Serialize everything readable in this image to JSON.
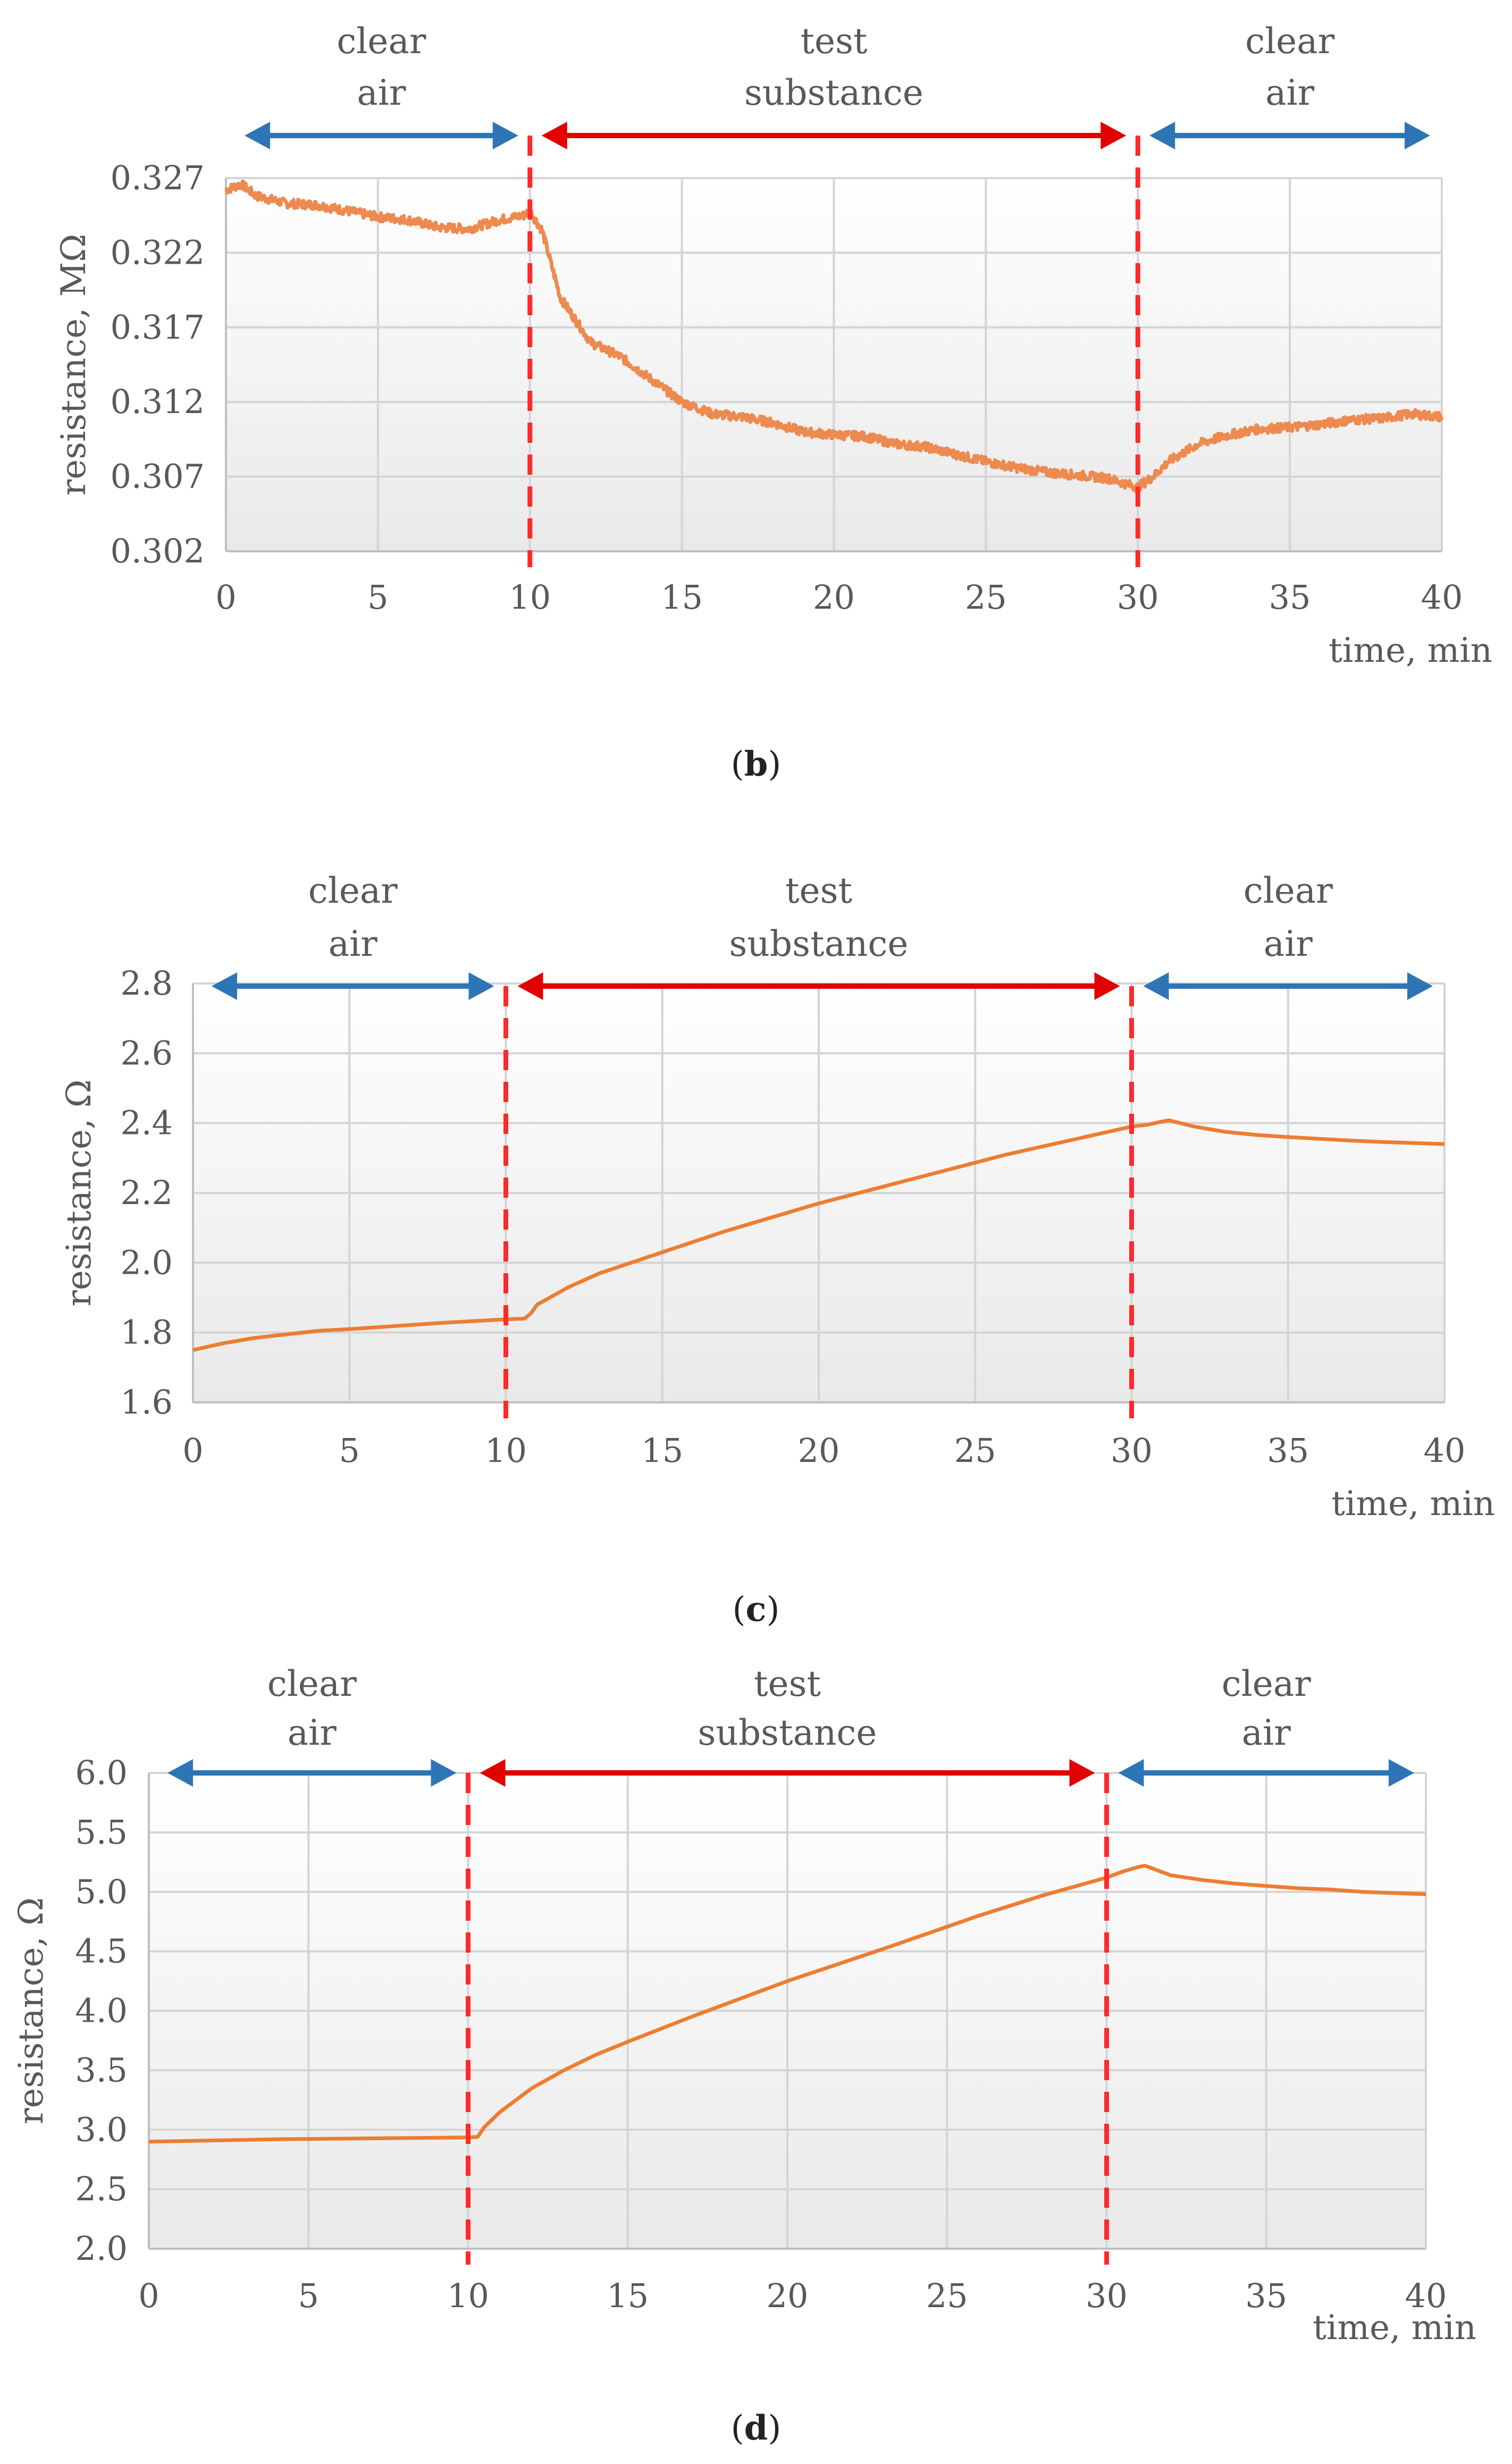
{
  "chart_data": [
    {
      "id": "b",
      "type": "line",
      "caption": "b",
      "ylabel": "resistance, MΩ",
      "xlabel": "time, min",
      "xlim": [
        0,
        40
      ],
      "ylim": [
        0.302,
        0.327
      ],
      "xticks": [
        0,
        5,
        10,
        15,
        20,
        25,
        30,
        35,
        40
      ],
      "x_tick_labels": [
        "0",
        "5",
        "10",
        "15",
        "20",
        "25",
        "30",
        "35",
        "40"
      ],
      "yticks": [
        0.302,
        0.307,
        0.312,
        0.317,
        0.322,
        0.327
      ],
      "y_tick_labels": [
        "0.302",
        "0.307",
        "0.312",
        "0.317",
        "0.322",
        "0.327"
      ],
      "grid": true,
      "noisy": true,
      "x": [
        0,
        0.5,
        1,
        2,
        3,
        4,
        5,
        6,
        7,
        8,
        9,
        9.8,
        10,
        10.4,
        11,
        12,
        13,
        14,
        15,
        16,
        17,
        18,
        19,
        20,
        21,
        22,
        23,
        24,
        25,
        26,
        27,
        28,
        29,
        29.8,
        30,
        30.5,
        31,
        32,
        33,
        34,
        35,
        36,
        37,
        38,
        39,
        40
      ],
      "values": [
        0.3262,
        0.3266,
        0.3258,
        0.3253,
        0.3252,
        0.3248,
        0.3244,
        0.3242,
        0.3237,
        0.3236,
        0.3242,
        0.3245,
        0.3248,
        0.3235,
        0.319,
        0.316,
        0.315,
        0.3135,
        0.312,
        0.3112,
        0.311,
        0.3106,
        0.31,
        0.3098,
        0.3097,
        0.3092,
        0.309,
        0.3085,
        0.308,
        0.3076,
        0.3073,
        0.3071,
        0.3069,
        0.3064,
        0.3063,
        0.307,
        0.308,
        0.3092,
        0.3098,
        0.3102,
        0.3103,
        0.3105,
        0.3108,
        0.3109,
        0.3112,
        0.311
      ],
      "phases": [
        {
          "label_line1": "clear",
          "label_line2": "air",
          "color": "#2E75B6",
          "from": 0,
          "to": 10
        },
        {
          "label_line1": "test",
          "label_line2": "substance",
          "color": "#E00000",
          "from": 10,
          "to": 30
        },
        {
          "label_line1": "clear",
          "label_line2": "air",
          "color": "#2E75B6",
          "from": 30,
          "to": 40
        }
      ],
      "switch_lines": [
        10,
        30
      ],
      "line_color": "#ED8A4F"
    },
    {
      "id": "c",
      "type": "line",
      "caption": "c",
      "ylabel": "resistance, Ω",
      "xlabel": "time, min",
      "xlim": [
        0,
        40
      ],
      "ylim": [
        1.6,
        2.8
      ],
      "xticks": [
        0,
        5,
        10,
        15,
        20,
        25,
        30,
        35,
        40
      ],
      "x_tick_labels": [
        "0",
        "5",
        "10",
        "15",
        "20",
        "25",
        "30",
        "35",
        "40"
      ],
      "yticks": [
        1.6,
        1.8,
        2.0,
        2.2,
        2.4,
        2.6,
        2.8
      ],
      "y_tick_labels": [
        "1.6",
        "1.8",
        "2.0",
        "2.2",
        "2.4",
        "2.6",
        "2.8"
      ],
      "grid": true,
      "noisy": false,
      "x": [
        0,
        1,
        2,
        3,
        4,
        5,
        6,
        7,
        8,
        9,
        10,
        10.6,
        10.8,
        11,
        12,
        13,
        14,
        15,
        17,
        20,
        23,
        26,
        28,
        30,
        30.5,
        31,
        31.2,
        32,
        33,
        34,
        35,
        36,
        37,
        38,
        39,
        40
      ],
      "values": [
        1.75,
        1.77,
        1.785,
        1.795,
        1.805,
        1.81,
        1.816,
        1.822,
        1.828,
        1.833,
        1.838,
        1.84,
        1.855,
        1.88,
        1.93,
        1.97,
        2.0,
        2.03,
        2.09,
        2.17,
        2.24,
        2.31,
        2.35,
        2.39,
        2.395,
        2.405,
        2.408,
        2.39,
        2.375,
        2.366,
        2.36,
        2.355,
        2.35,
        2.346,
        2.343,
        2.34
      ],
      "phases": [
        {
          "label_line1": "clear",
          "label_line2": "air",
          "color": "#2E75B6",
          "from": 0,
          "to": 10
        },
        {
          "label_line1": "test",
          "label_line2": "substance",
          "color": "#E00000",
          "from": 10,
          "to": 30
        },
        {
          "label_line1": "clear",
          "label_line2": "air",
          "color": "#2E75B6",
          "from": 30,
          "to": 40
        }
      ],
      "switch_lines": [
        10,
        30
      ],
      "line_color": "#ED7D31"
    },
    {
      "id": "d",
      "type": "line",
      "caption": "d",
      "ylabel": "resistance, Ω",
      "xlabel": "time, min",
      "xlim": [
        0,
        40
      ],
      "ylim": [
        2.0,
        6.0
      ],
      "xticks": [
        0,
        5,
        10,
        15,
        20,
        25,
        30,
        35,
        40
      ],
      "x_tick_labels": [
        "0",
        "5",
        "10",
        "15",
        "20",
        "25",
        "30",
        "35",
        "40"
      ],
      "yticks": [
        2.0,
        2.5,
        3.0,
        3.5,
        4.0,
        4.5,
        5.0,
        5.5,
        6.0
      ],
      "y_tick_labels": [
        "2.0",
        "2.5",
        "3.0",
        "3.5",
        "4.0",
        "4.5",
        "5.0",
        "5.5",
        "6.0"
      ],
      "grid": true,
      "noisy": false,
      "x": [
        0,
        2,
        4,
        6,
        8,
        10,
        10.3,
        10.5,
        11,
        12,
        13,
        14,
        15,
        17,
        20,
        23,
        26,
        28,
        30,
        30.5,
        31,
        31.2,
        32,
        33,
        34,
        35,
        36,
        37,
        38,
        39,
        40
      ],
      "values": [
        2.9,
        2.91,
        2.92,
        2.925,
        2.93,
        2.935,
        2.94,
        3.02,
        3.15,
        3.35,
        3.5,
        3.63,
        3.74,
        3.95,
        4.25,
        4.52,
        4.8,
        4.97,
        5.12,
        5.17,
        5.21,
        5.22,
        5.14,
        5.1,
        5.07,
        5.05,
        5.03,
        5.02,
        5.0,
        4.99,
        4.98
      ],
      "phases": [
        {
          "label_line1": "clear",
          "label_line2": "air",
          "color": "#2E75B6",
          "from": 0,
          "to": 10
        },
        {
          "label_line1": "test",
          "label_line2": "substance",
          "color": "#E00000",
          "from": 10,
          "to": 30
        },
        {
          "label_line1": "clear",
          "label_line2": "air",
          "color": "#2E75B6",
          "from": 30,
          "to": 40
        }
      ],
      "switch_lines": [
        10,
        30
      ],
      "line_color": "#ED7D31"
    }
  ]
}
